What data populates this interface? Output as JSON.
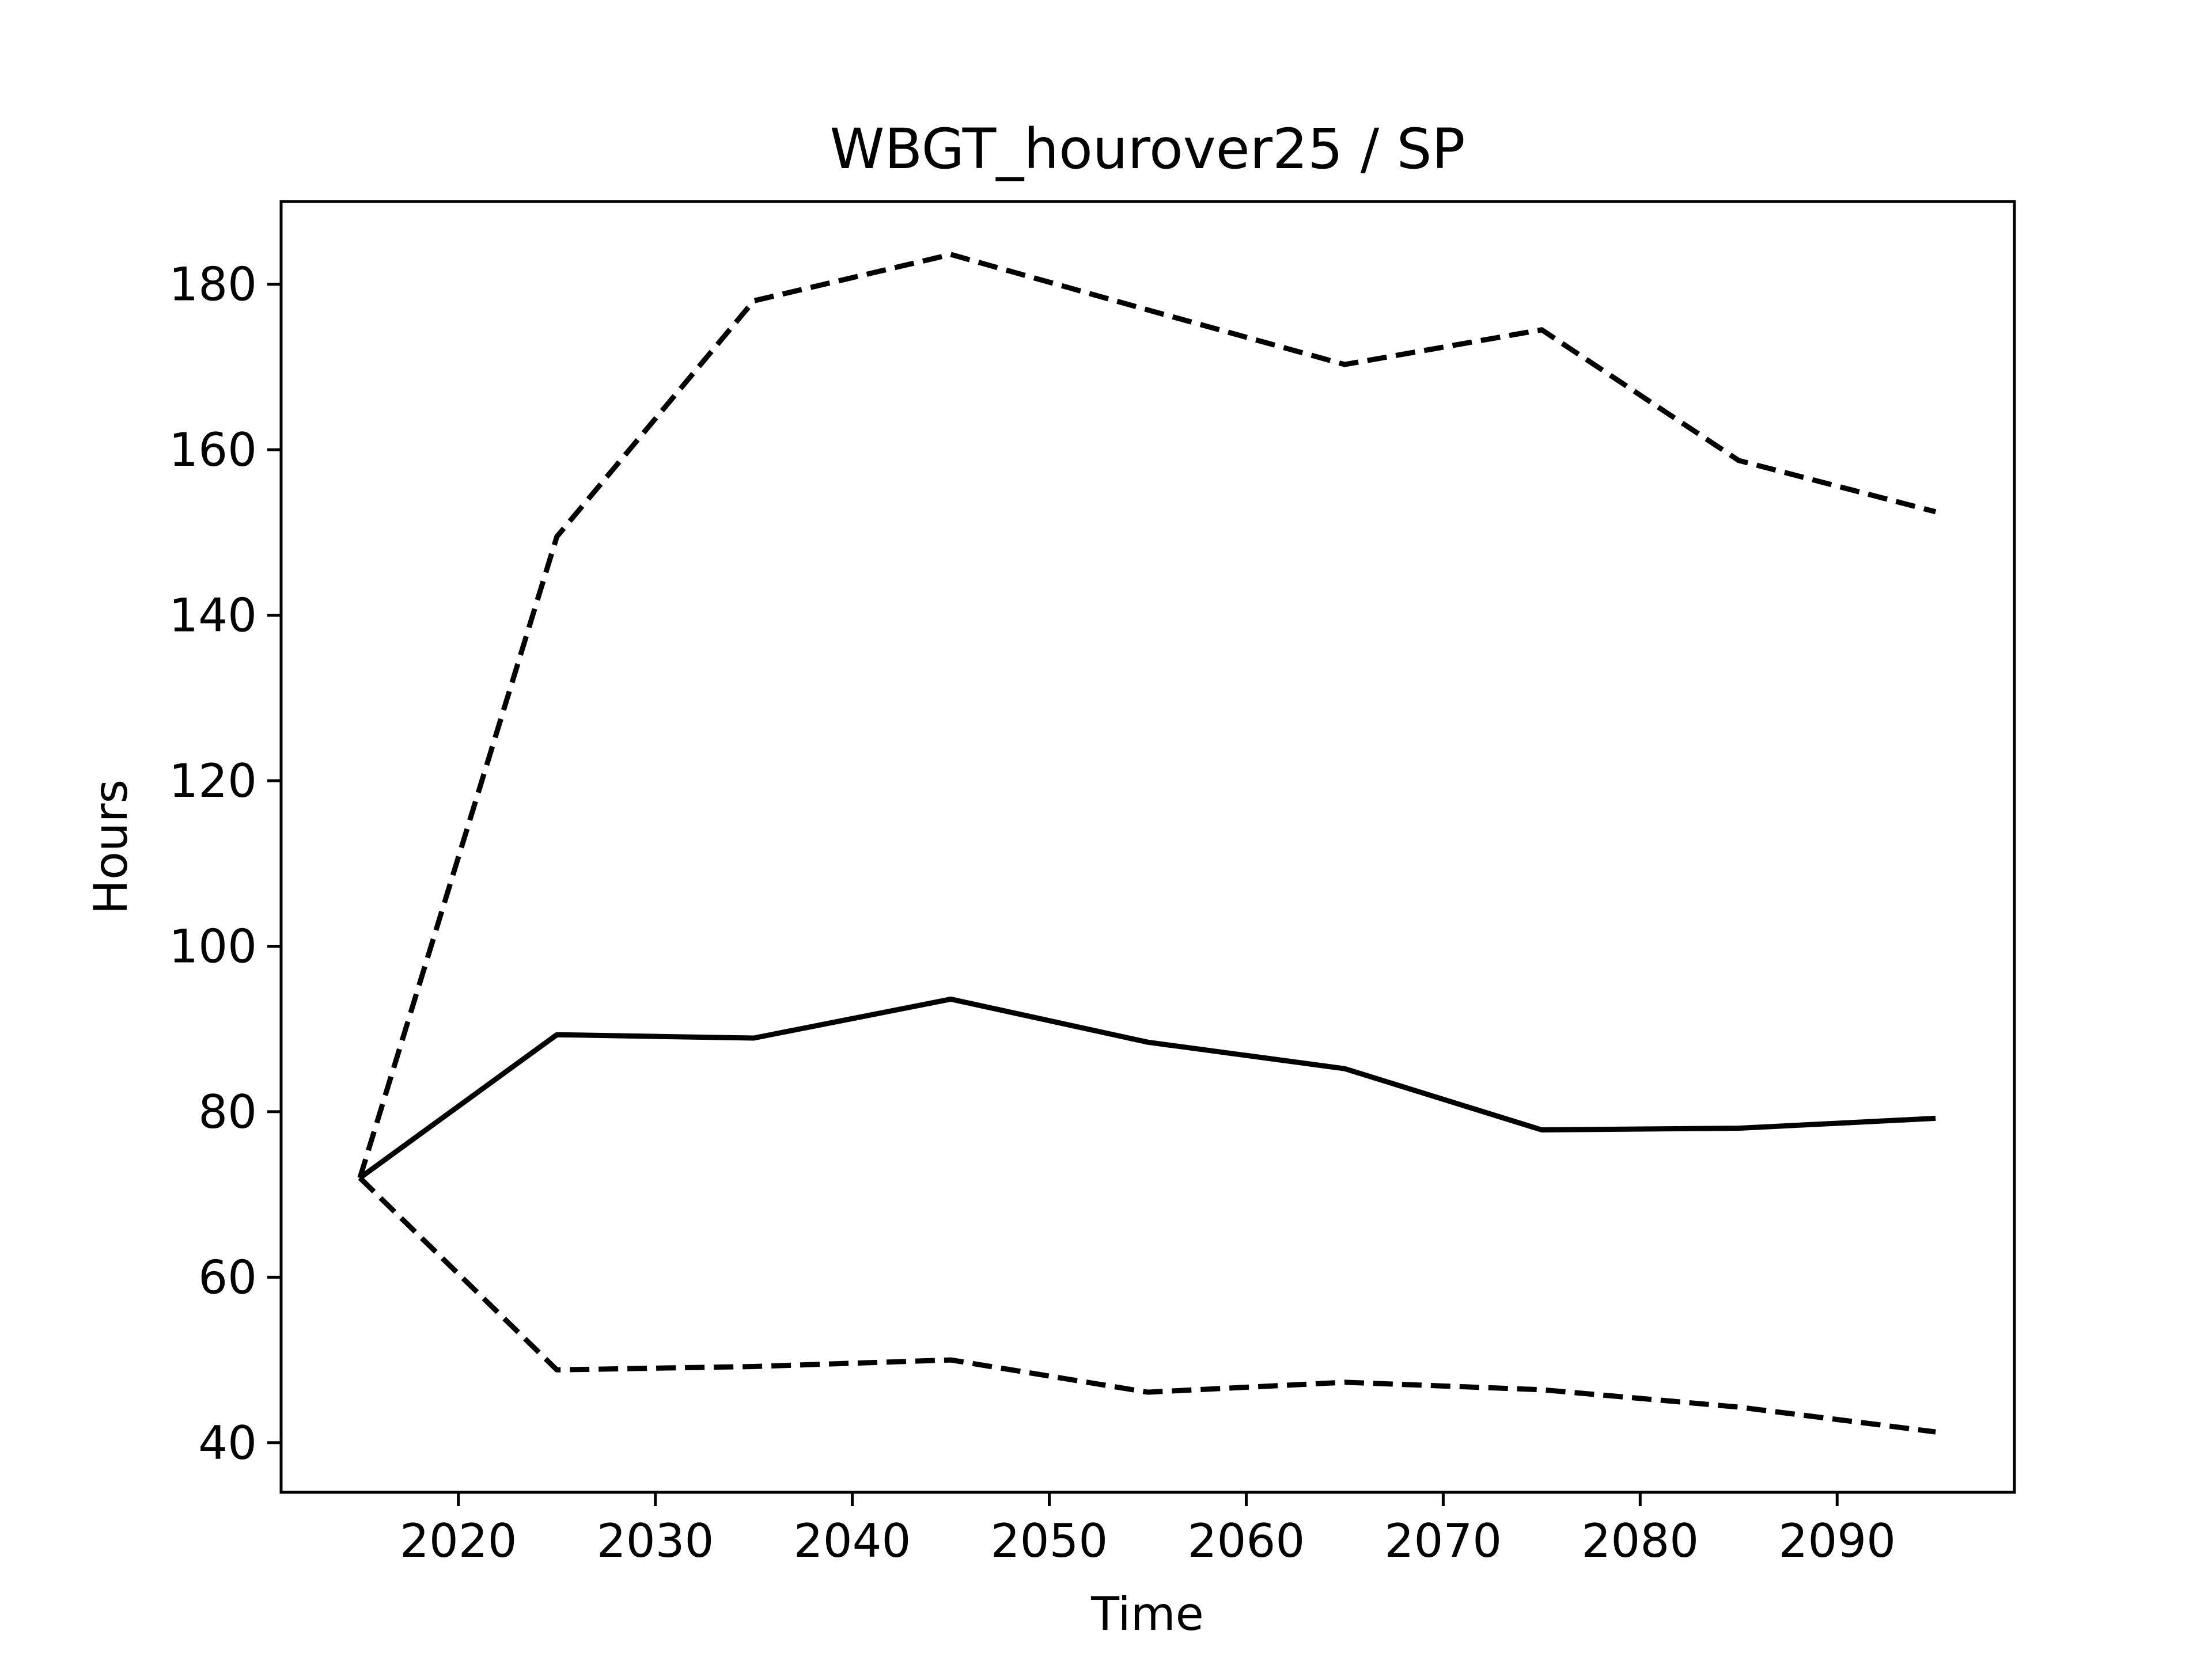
{
  "chart_data": {
    "type": "line",
    "title": "WBGT_hourover25 / SP",
    "xlabel": "Time",
    "ylabel": "Hours",
    "xlim": [
      2011,
      2099
    ],
    "ylim": [
      34,
      190
    ],
    "xticks": [
      2020,
      2030,
      2040,
      2050,
      2060,
      2070,
      2080,
      2090
    ],
    "yticks": [
      40,
      60,
      80,
      100,
      120,
      140,
      160,
      180
    ],
    "x": [
      2015,
      2025,
      2035,
      2045,
      2055,
      2065,
      2075,
      2085,
      2095
    ],
    "series": [
      {
        "style": "solid",
        "color": "#000000",
        "values": [
          72,
          89.3,
          88.9,
          93.6,
          88.4,
          85.2,
          77.8,
          78.0,
          79.2
        ]
      },
      {
        "style": "dashed",
        "color": "#000000",
        "values": [
          72,
          149.5,
          178.0,
          183.6,
          176.9,
          170.3,
          174.5,
          158.7,
          152.5
        ]
      },
      {
        "style": "dashed",
        "color": "#000000",
        "values": [
          72,
          48.8,
          49.2,
          50.0,
          46.1,
          47.3,
          46.4,
          44.3,
          41.3
        ]
      }
    ],
    "grid": false,
    "legend": "none"
  }
}
